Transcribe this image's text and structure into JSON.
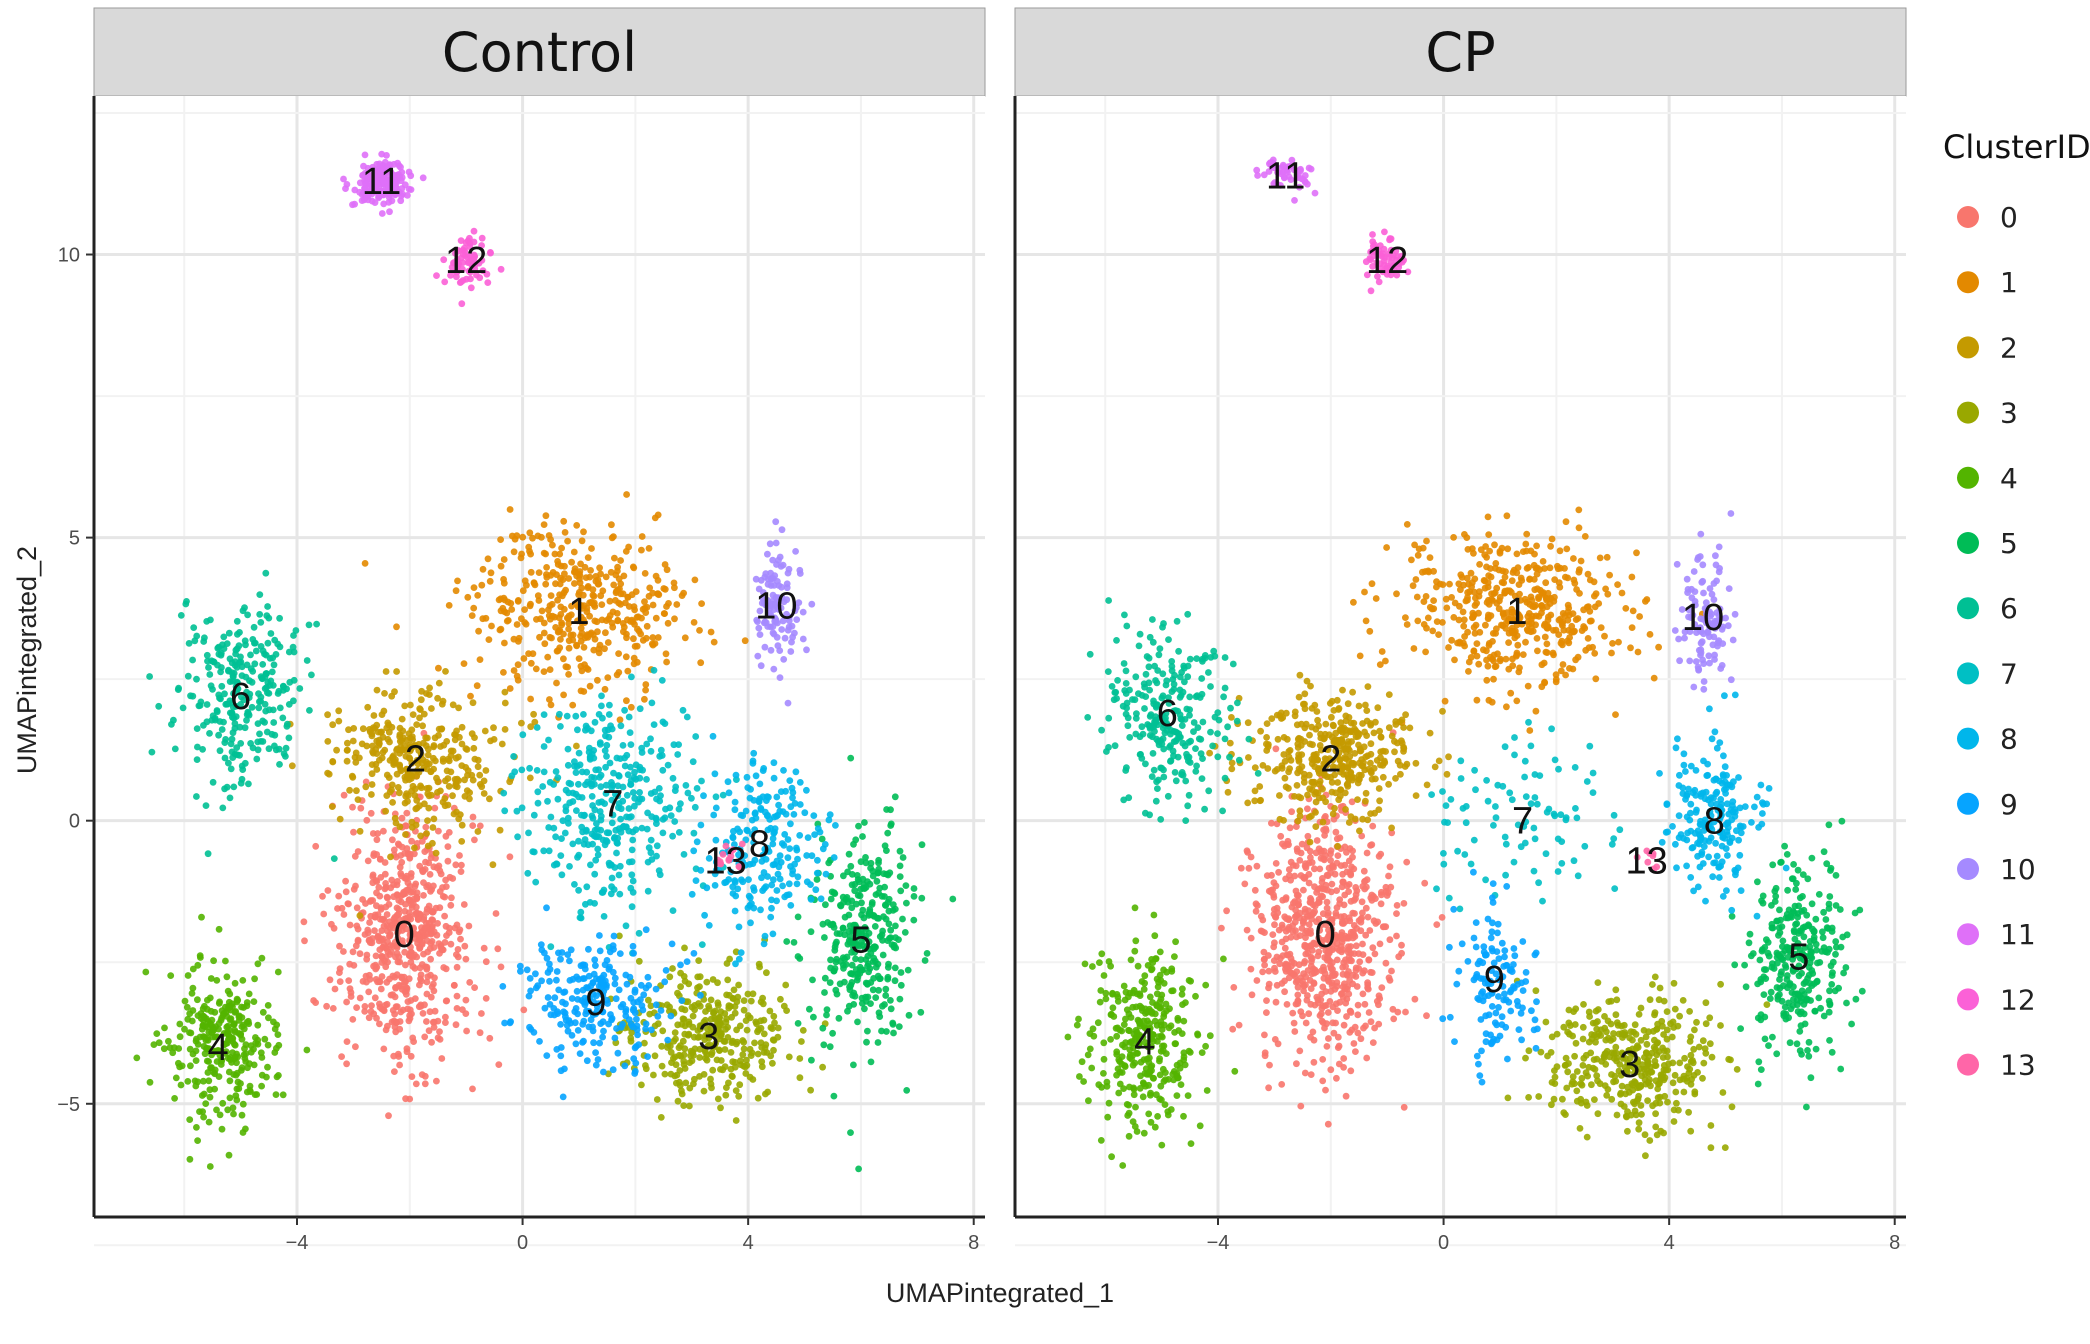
{
  "chart_data": {
    "type": "scatter",
    "xlabel": "UMAPintegrated_1",
    "ylabel": "UMAPintegrated_2",
    "xlim": [
      -7.6,
      8.2
    ],
    "ylim": [
      -7.0,
      12.8
    ],
    "x_ticks": [
      -4,
      0,
      4,
      8
    ],
    "y_ticks": [
      -5,
      0,
      5,
      10
    ],
    "grid": true,
    "legend": {
      "title": "ClusterID",
      "position": "right",
      "entries": [
        {
          "label": "0",
          "color": "#F8766D"
        },
        {
          "label": "1",
          "color": "#E38900"
        },
        {
          "label": "2",
          "color": "#C49A00"
        },
        {
          "label": "3",
          "color": "#99A800"
        },
        {
          "label": "4",
          "color": "#53B400"
        },
        {
          "label": "5",
          "color": "#00BC56"
        },
        {
          "label": "6",
          "color": "#00C094"
        },
        {
          "label": "7",
          "color": "#00BFC4"
        },
        {
          "label": "8",
          "color": "#00B6EB"
        },
        {
          "label": "9",
          "color": "#06A4FF"
        },
        {
          "label": "10",
          "color": "#A58AFF"
        },
        {
          "label": "11",
          "color": "#DF70F8"
        },
        {
          "label": "12",
          "color": "#FB61D7"
        },
        {
          "label": "13",
          "color": "#FF66A8"
        }
      ]
    },
    "panels": [
      {
        "title": "Control",
        "clusters": [
          {
            "id": "0",
            "label_pos": [
              -2.1,
              -2.0
            ],
            "spread": [
              1.1,
              2.0
            ],
            "n": 620
          },
          {
            "id": "1",
            "label_pos": [
              1.0,
              3.7
            ],
            "spread": [
              1.8,
              1.3
            ],
            "n": 420
          },
          {
            "id": "2",
            "label_pos": [
              -1.9,
              1.1
            ],
            "spread": [
              1.4,
              1.2
            ],
            "n": 340
          },
          {
            "id": "3",
            "label_pos": [
              3.3,
              -3.8
            ],
            "spread": [
              1.4,
              1.1
            ],
            "n": 340
          },
          {
            "id": "4",
            "label_pos": [
              -5.4,
              -4.0
            ],
            "spread": [
              0.9,
              1.3
            ],
            "n": 300
          },
          {
            "id": "5",
            "label_pos": [
              6.0,
              -2.1
            ],
            "spread": [
              0.9,
              1.8
            ],
            "n": 330
          },
          {
            "id": "6",
            "label_pos": [
              -5.0,
              2.2
            ],
            "spread": [
              1.0,
              1.6
            ],
            "n": 280
          },
          {
            "id": "7",
            "label_pos": [
              1.6,
              0.3
            ],
            "spread": [
              1.4,
              1.6
            ],
            "n": 360
          },
          {
            "id": "8",
            "label_pos": [
              4.2,
              -0.4
            ],
            "spread": [
              1.0,
              1.5
            ],
            "n": 220
          },
          {
            "id": "9",
            "label_pos": [
              1.3,
              -3.2
            ],
            "spread": [
              1.2,
              1.0
            ],
            "n": 240
          },
          {
            "id": "10",
            "label_pos": [
              4.5,
              3.8
            ],
            "spread": [
              0.4,
              1.0
            ],
            "n": 110
          },
          {
            "id": "11",
            "label_pos": [
              -2.5,
              11.3
            ],
            "spread": [
              0.4,
              0.4
            ],
            "n": 180
          },
          {
            "id": "12",
            "label_pos": [
              -1.0,
              9.9
            ],
            "spread": [
              0.4,
              0.4
            ],
            "n": 70
          },
          {
            "id": "13",
            "label_pos": [
              3.6,
              -0.7
            ],
            "spread": [
              0.2,
              0.2
            ],
            "n": 14
          }
        ]
      },
      {
        "title": "CP",
        "clusters": [
          {
            "id": "0",
            "label_pos": [
              -2.1,
              -2.0
            ],
            "spread": [
              1.1,
              2.0
            ],
            "n": 680
          },
          {
            "id": "1",
            "label_pos": [
              1.3,
              3.7
            ],
            "spread": [
              1.9,
              1.2
            ],
            "n": 460
          },
          {
            "id": "2",
            "label_pos": [
              -2.0,
              1.1
            ],
            "spread": [
              1.4,
              1.0
            ],
            "n": 380
          },
          {
            "id": "3",
            "label_pos": [
              3.3,
              -4.3
            ],
            "spread": [
              1.4,
              1.1
            ],
            "n": 380
          },
          {
            "id": "4",
            "label_pos": [
              -5.3,
              -3.9
            ],
            "spread": [
              0.9,
              1.4
            ],
            "n": 320
          },
          {
            "id": "5",
            "label_pos": [
              6.3,
              -2.4
            ],
            "spread": [
              0.8,
              1.6
            ],
            "n": 300
          },
          {
            "id": "6",
            "label_pos": [
              -4.9,
              1.9
            ],
            "spread": [
              1.0,
              1.5
            ],
            "n": 260
          },
          {
            "id": "7",
            "label_pos": [
              1.4,
              0.0
            ],
            "spread": [
              1.6,
              1.4
            ],
            "n": 90
          },
          {
            "id": "8",
            "label_pos": [
              4.8,
              0.0
            ],
            "spread": [
              0.8,
              1.2
            ],
            "n": 200
          },
          {
            "id": "9",
            "label_pos": [
              0.9,
              -2.8
            ],
            "spread": [
              0.6,
              1.2
            ],
            "n": 130
          },
          {
            "id": "10",
            "label_pos": [
              4.6,
              3.6
            ],
            "spread": [
              0.4,
              1.0
            ],
            "n": 110
          },
          {
            "id": "11",
            "label_pos": [
              -2.8,
              11.4
            ],
            "spread": [
              0.4,
              0.3
            ],
            "n": 50
          },
          {
            "id": "12",
            "label_pos": [
              -1.0,
              9.9
            ],
            "spread": [
              0.3,
              0.4
            ],
            "n": 60
          },
          {
            "id": "13",
            "label_pos": [
              3.6,
              -0.7
            ],
            "spread": [
              0.2,
              0.2
            ],
            "n": 8
          }
        ]
      }
    ]
  }
}
